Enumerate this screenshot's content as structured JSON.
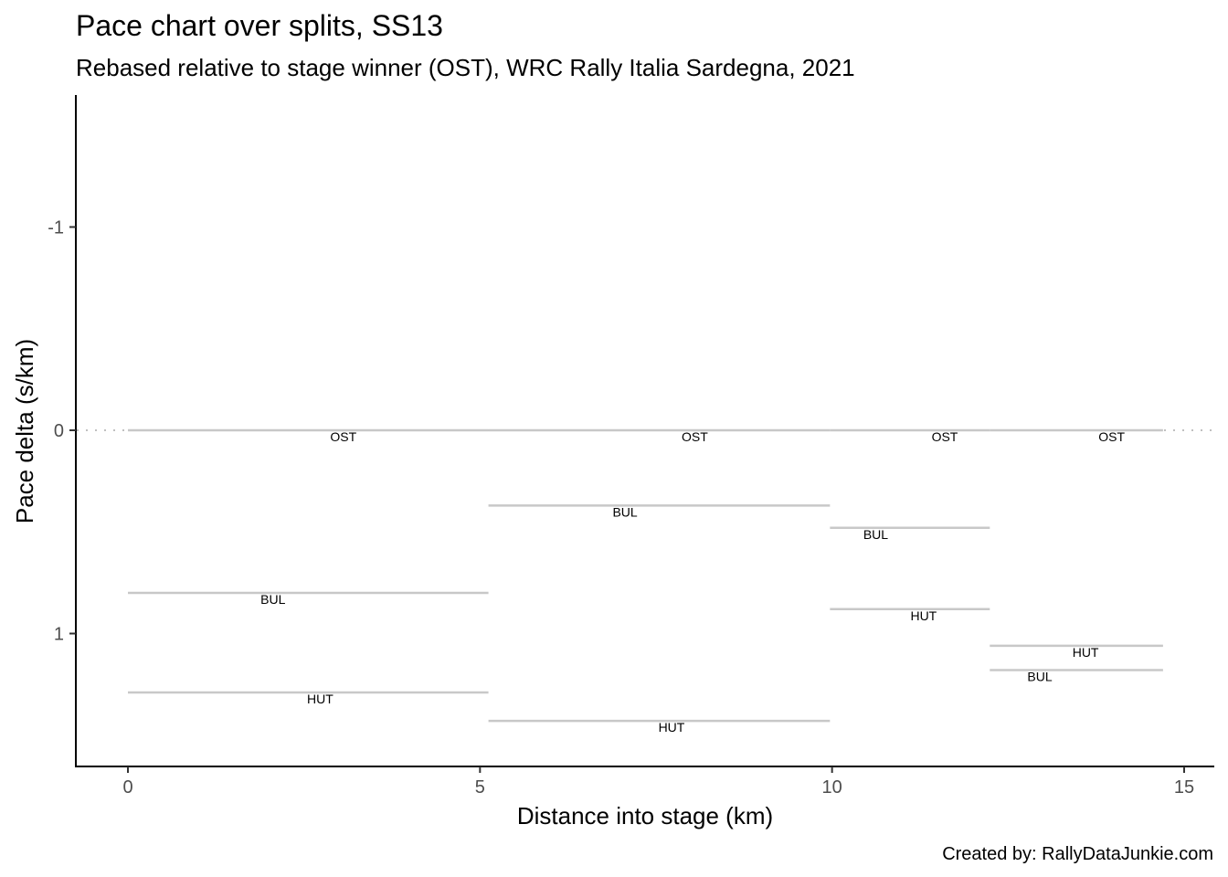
{
  "chart_data": {
    "type": "line",
    "title": "Pace chart over splits, SS13",
    "subtitle": "Rebased relative to stage winner (OST), WRC Rally Italia Sardegna, 2021",
    "xlabel": "Distance into stage (km)",
    "ylabel": "Pace delta (s/km)",
    "caption": "Created by: RallyDataJunkie.com",
    "xlim": [
      -0.7,
      15.3
    ],
    "ylim": [
      1.65,
      -1.65
    ],
    "y_reversed": true,
    "x_ticks": [
      0,
      5,
      10,
      15
    ],
    "x_tick_labels": [
      "0",
      "5",
      "10",
      "15"
    ],
    "y_ticks": [
      -1,
      0,
      1
    ],
    "y_tick_labels": [
      "-1",
      "0",
      "1"
    ],
    "reference_line": {
      "y": 0,
      "style": "dotted"
    },
    "grid": false,
    "segments": [
      {
        "driver": "OST",
        "x_start": 0,
        "x_end": 5.12,
        "pace_delta": 0
      },
      {
        "driver": "OST",
        "x_start": 5.12,
        "x_end": 9.97,
        "pace_delta": 0
      },
      {
        "driver": "OST",
        "x_start": 9.97,
        "x_end": 12.24,
        "pace_delta": 0
      },
      {
        "driver": "OST",
        "x_start": 12.24,
        "x_end": 14.7,
        "pace_delta": 0
      },
      {
        "driver": "BUL",
        "x_start": 0,
        "x_end": 5.12,
        "pace_delta": 0.8
      },
      {
        "driver": "BUL",
        "x_start": 5.12,
        "x_end": 9.97,
        "pace_delta": 0.37
      },
      {
        "driver": "BUL",
        "x_start": 9.97,
        "x_end": 12.24,
        "pace_delta": 0.48
      },
      {
        "driver": "BUL",
        "x_start": 12.24,
        "x_end": 14.7,
        "pace_delta": 1.18
      },
      {
        "driver": "HUT",
        "x_start": 0,
        "x_end": 5.12,
        "pace_delta": 1.29
      },
      {
        "driver": "HUT",
        "x_start": 5.12,
        "x_end": 9.97,
        "pace_delta": 1.43
      },
      {
        "driver": "HUT",
        "x_start": 9.97,
        "x_end": 12.24,
        "pace_delta": 0.88
      },
      {
        "driver": "HUT",
        "x_start": 12.24,
        "x_end": 14.7,
        "pace_delta": 1.06
      }
    ],
    "segment_labels": [
      {
        "text": "OST",
        "x": 3.06,
        "y": 0
      },
      {
        "text": "OST",
        "x": 8.05,
        "y": 0
      },
      {
        "text": "OST",
        "x": 11.6,
        "y": 0
      },
      {
        "text": "OST",
        "x": 13.97,
        "y": 0
      },
      {
        "text": "BUL",
        "x": 2.06,
        "y": 0.8
      },
      {
        "text": "BUL",
        "x": 7.06,
        "y": 0.37
      },
      {
        "text": "BUL",
        "x": 10.62,
        "y": 0.48
      },
      {
        "text": "BUL",
        "x": 12.95,
        "y": 1.18
      },
      {
        "text": "HUT",
        "x": 2.73,
        "y": 1.29
      },
      {
        "text": "HUT",
        "x": 7.72,
        "y": 1.43
      },
      {
        "text": "HUT",
        "x": 11.3,
        "y": 0.88
      },
      {
        "text": "HUT",
        "x": 13.6,
        "y": 1.06
      }
    ],
    "colors": {
      "segment": "#c8c8c8",
      "reference": "#c0c0c0",
      "axis": "#000000",
      "tick_text": "#4d4d4d"
    }
  }
}
